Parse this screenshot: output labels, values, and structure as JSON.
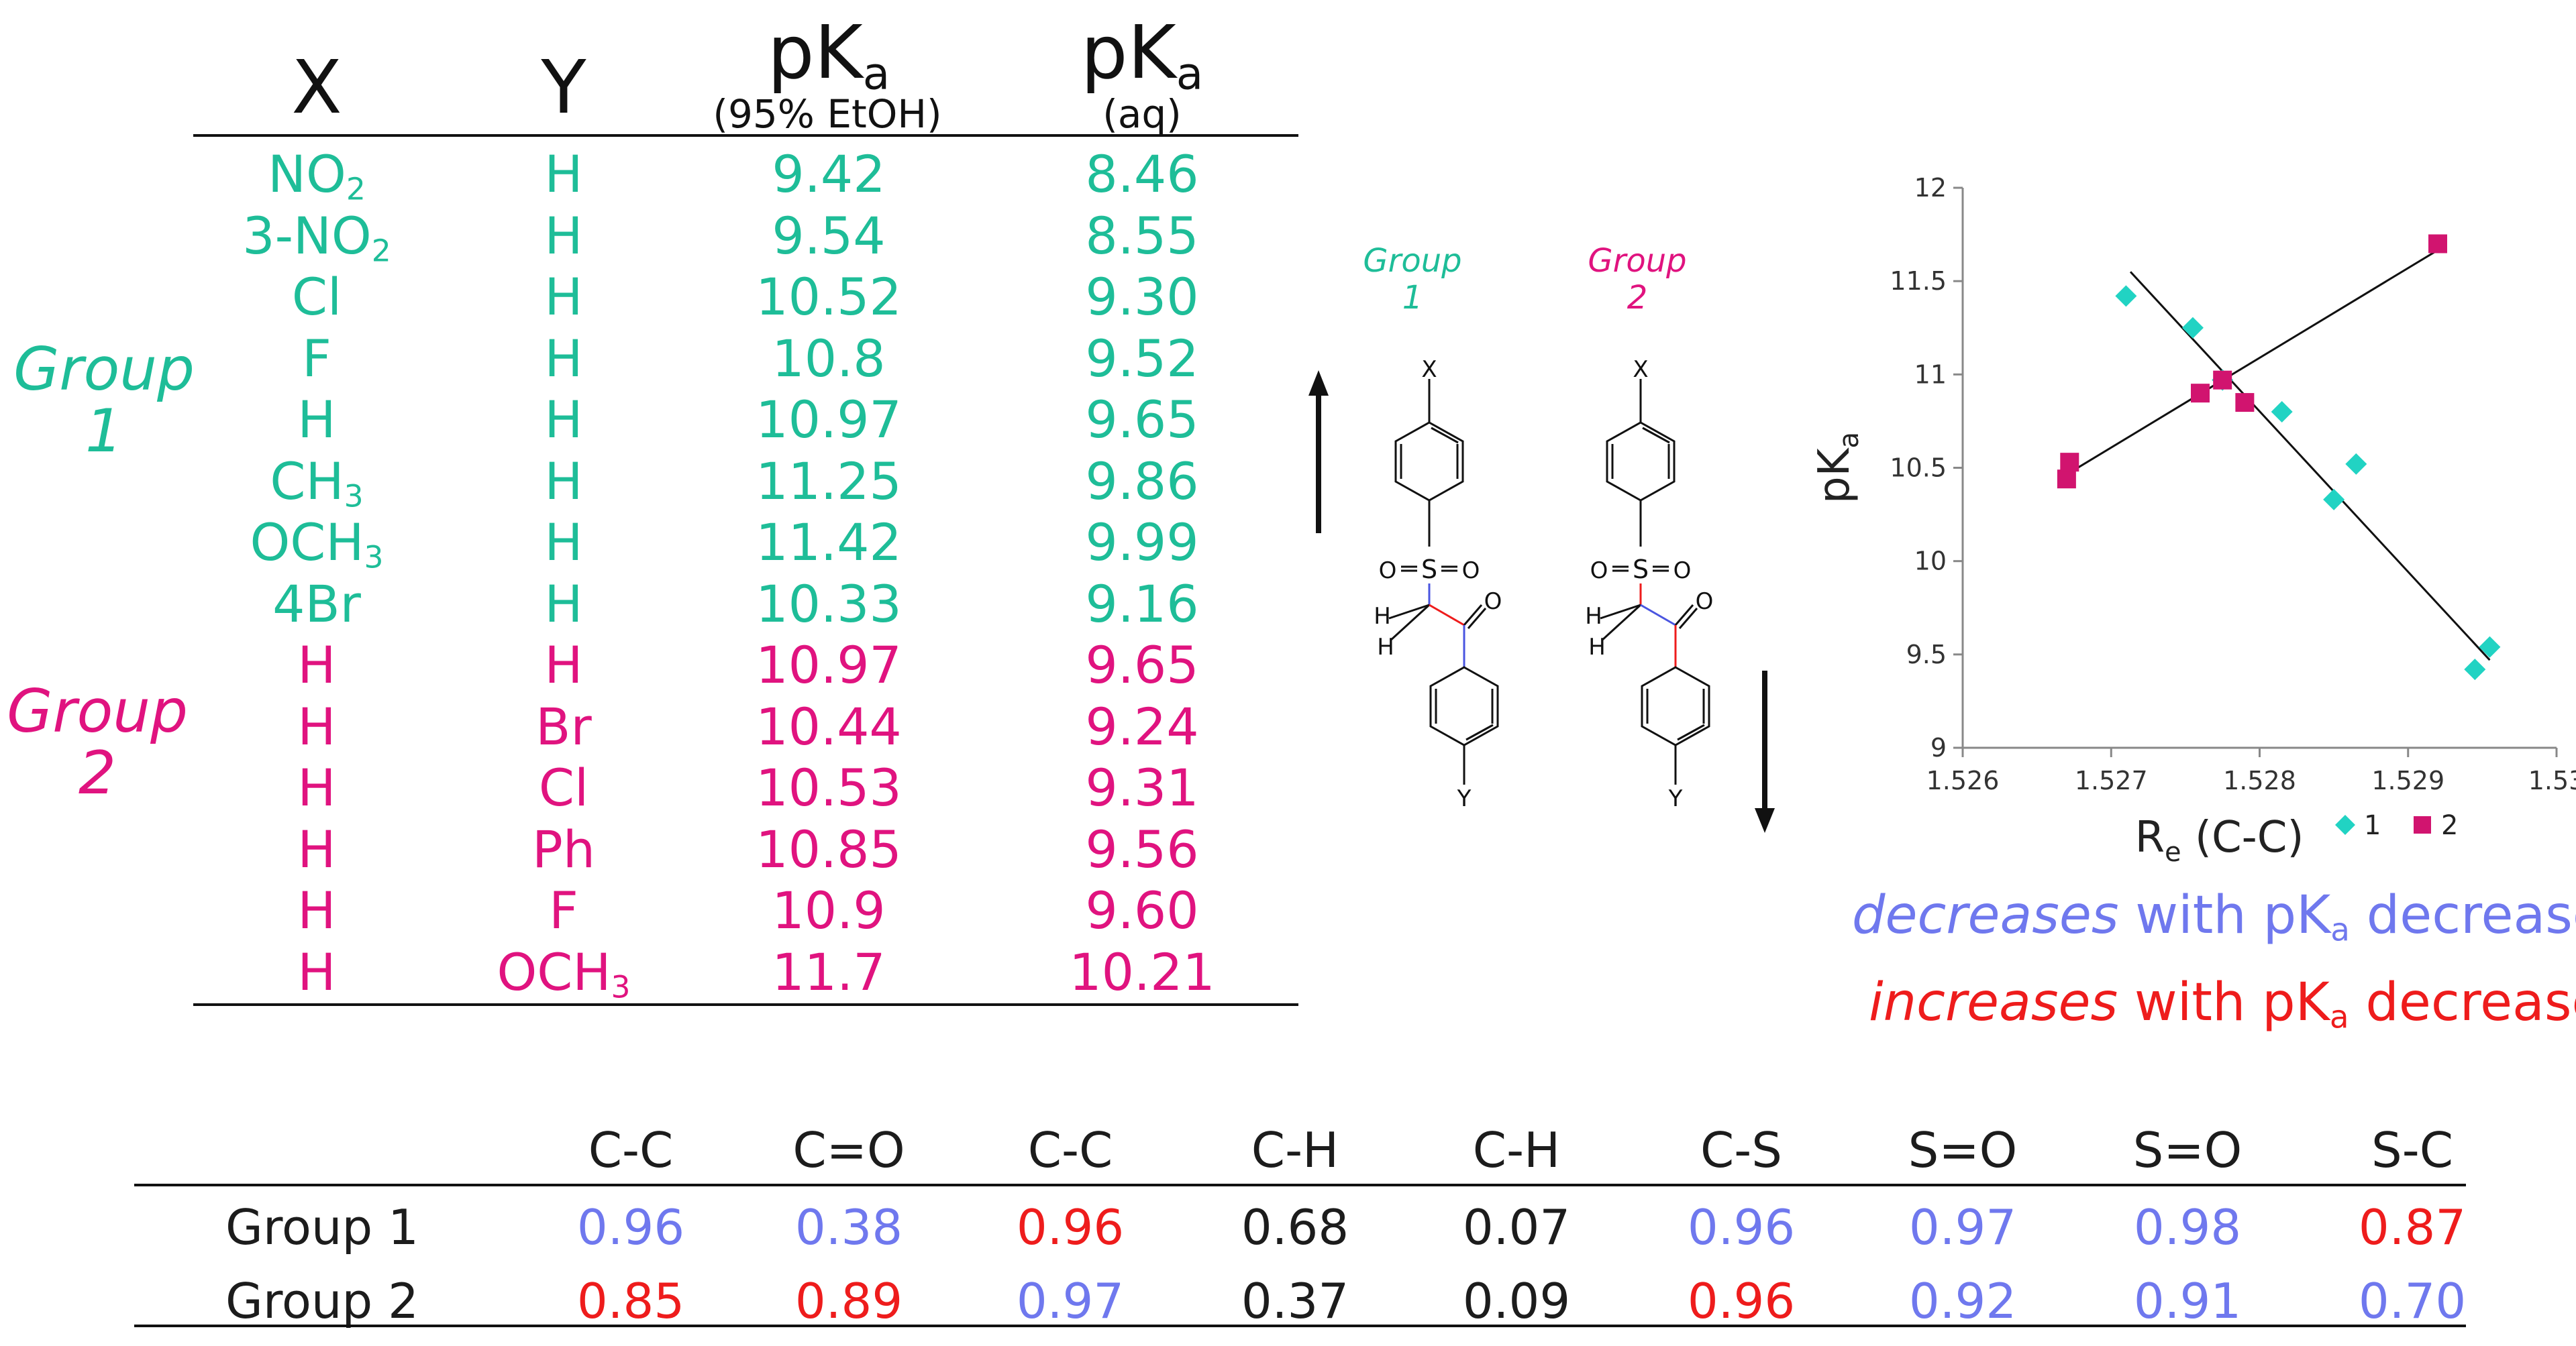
{
  "table": {
    "headers": {
      "x": "X",
      "y": "Y",
      "pka_etoh": "pK",
      "pka_etoh_sub": "a",
      "pka_etoh_note": "(95% EtOH)",
      "pka_aq": "pK",
      "pka_aq_sub": "a",
      "pka_aq_note": "(aq)"
    },
    "group1_label_line1": "Group",
    "group1_label_line2": "1",
    "group2_label_line1": "Group",
    "group2_label_line2": "2",
    "rows": [
      {
        "x": "NO",
        "x_sub": "2",
        "y": "H",
        "etoh": "9.42",
        "aq": "8.46",
        "group": 1
      },
      {
        "x": "3-NO",
        "x_sub": "2",
        "y": "H",
        "etoh": "9.54",
        "aq": "8.55",
        "group": 1
      },
      {
        "x": "Cl",
        "x_sub": "",
        "y": "H",
        "etoh": "10.52",
        "aq": "9.30",
        "group": 1
      },
      {
        "x": "F",
        "x_sub": "",
        "y": "H",
        "etoh": "10.8",
        "aq": "9.52",
        "group": 1
      },
      {
        "x": "H",
        "x_sub": "",
        "y": "H",
        "etoh": "10.97",
        "aq": "9.65",
        "group": 1
      },
      {
        "x": "CH",
        "x_sub": "3",
        "y": "H",
        "etoh": "11.25",
        "aq": "9.86",
        "group": 1
      },
      {
        "x": "OCH",
        "x_sub": "3",
        "y": "H",
        "etoh": "11.42",
        "aq": "9.99",
        "group": 1
      },
      {
        "x": "4Br",
        "x_sub": "",
        "y": "H",
        "etoh": "10.33",
        "aq": "9.16",
        "group": 1
      },
      {
        "x": "H",
        "x_sub": "",
        "y": "H",
        "etoh": "10.97",
        "aq": "9.65",
        "group": 2
      },
      {
        "x": "H",
        "x_sub": "",
        "y": "Br",
        "etoh": "10.44",
        "aq": "9.24",
        "group": 2
      },
      {
        "x": "H",
        "x_sub": "",
        "y": "Cl",
        "etoh": "10.53",
        "aq": "9.31",
        "group": 2
      },
      {
        "x": "H",
        "x_sub": "",
        "y": "Ph",
        "etoh": "10.85",
        "aq": "9.56",
        "group": 2
      },
      {
        "x": "H",
        "x_sub": "",
        "y": "F",
        "etoh": "10.9",
        "aq": "9.60",
        "group": 2
      },
      {
        "x": "H",
        "x_sub": "",
        "y": "OCH",
        "y_sub": "3",
        "etoh": "11.7",
        "aq": "10.21",
        "group": 2
      }
    ]
  },
  "structures": {
    "group1_label_line1": "Group",
    "group1_label_line2": "1",
    "group2_label_line1": "Group",
    "group2_label_line2": "2",
    "atom_x": "X",
    "atom_y": "Y",
    "atom_s": "S",
    "atom_o": "O",
    "atom_h": "H"
  },
  "legend_notes": {
    "line1_em": "decreases",
    "line1_rest": " with pK",
    "line1_sub": "a",
    "line1_end": " decrease",
    "line2_em": "increases",
    "line2_rest": " with pK",
    "line2_sub": "a",
    "line2_end": " decrease"
  },
  "bottom_table": {
    "columns": [
      "C-C",
      "C=O",
      "C-C",
      "C-H",
      "C-H",
      "C-S",
      "S=O",
      "S=O",
      "S-C"
    ],
    "rows": [
      {
        "label": "Group 1",
        "values": [
          "0.96",
          "0.38",
          "0.96",
          "0.68",
          "0.07",
          "0.96",
          "0.97",
          "0.98",
          "0.87"
        ],
        "colors": [
          "blue",
          "blue",
          "red",
          "blk",
          "blk",
          "blue",
          "blue",
          "blue",
          "red"
        ]
      },
      {
        "label": "Group 2",
        "values": [
          "0.85",
          "0.89",
          "0.97",
          "0.37",
          "0.09",
          "0.96",
          "0.92",
          "0.91",
          "0.70"
        ],
        "colors": [
          "red",
          "red",
          "blue",
          "blk",
          "blk",
          "red",
          "blue",
          "blue",
          "blue"
        ]
      }
    ]
  },
  "colors": {
    "teal": "#1ebd98",
    "magenta": "#e0137f",
    "blue": "#6f78ee",
    "red": "#ee1c1c",
    "scatter_series1": "#21d3c3",
    "scatter_series2": "#d1146f"
  },
  "chart_data": {
    "type": "scatter",
    "xlabel": "R",
    "xlabel_sub": "e",
    "xlabel_rest": " (C-C)",
    "ylabel": "pK",
    "ylabel_sub": "a",
    "xlim": [
      1.526,
      1.53
    ],
    "ylim": [
      9,
      12
    ],
    "x_ticks": [
      "1.526",
      "1.527",
      "1.528",
      "1.529",
      "1.53"
    ],
    "y_ticks": [
      "9",
      "9.5",
      "10",
      "10.5",
      "11",
      "11.5",
      "12"
    ],
    "grid": false,
    "legend_position": "bottom-right",
    "series": [
      {
        "name": "1",
        "marker": "diamond",
        "color": "#21d3c3",
        "points": [
          {
            "x": 1.52945,
            "y": 9.42
          },
          {
            "x": 1.52955,
            "y": 9.54
          },
          {
            "x": 1.52865,
            "y": 10.52
          },
          {
            "x": 1.52815,
            "y": 10.8
          },
          {
            "x": 1.52775,
            "y": 10.97
          },
          {
            "x": 1.52755,
            "y": 11.25
          },
          {
            "x": 1.5271,
            "y": 11.42
          },
          {
            "x": 1.5285,
            "y": 10.33
          }
        ],
        "trendline": [
          {
            "x": 1.52713,
            "y": 11.55
          },
          {
            "x": 1.52955,
            "y": 9.47
          }
        ]
      },
      {
        "name": "2",
        "marker": "square",
        "color": "#d1146f",
        "points": [
          {
            "x": 1.5267,
            "y": 10.44
          },
          {
            "x": 1.52672,
            "y": 10.53
          },
          {
            "x": 1.5276,
            "y": 10.9
          },
          {
            "x": 1.52775,
            "y": 10.97
          },
          {
            "x": 1.5279,
            "y": 10.85
          },
          {
            "x": 1.5292,
            "y": 11.7
          }
        ],
        "trendline": [
          {
            "x": 1.52665,
            "y": 10.44
          },
          {
            "x": 1.52925,
            "y": 11.69
          }
        ]
      }
    ]
  }
}
